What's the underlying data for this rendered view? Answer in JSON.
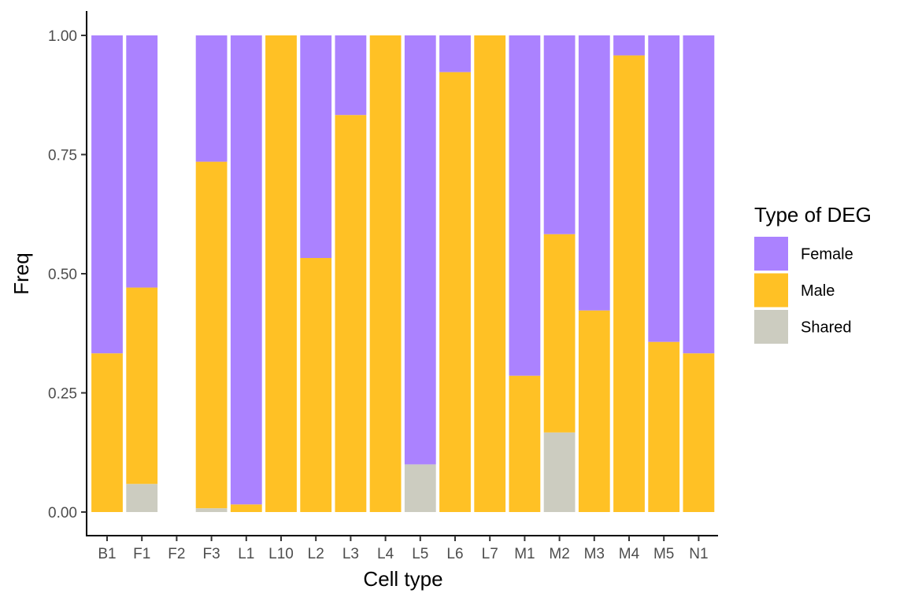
{
  "chart_data": {
    "type": "bar",
    "stacked": true,
    "title": "",
    "xlabel": "Cell type",
    "ylabel": "Freq",
    "ylim": [
      0,
      1
    ],
    "yticks": [
      "0.00",
      "0.25",
      "0.50",
      "0.75",
      "1.00"
    ],
    "categories": [
      "B1",
      "F1",
      "F2",
      "F3",
      "L1",
      "L10",
      "L2",
      "L3",
      "L4",
      "L5",
      "L6",
      "L7",
      "M1",
      "M2",
      "M3",
      "M4",
      "M5",
      "N1"
    ],
    "series": [
      {
        "name": "Shared",
        "color": "#CCCCC0",
        "values": [
          0,
          0.059,
          0,
          0.008,
          0,
          0,
          0,
          0,
          0,
          0.1,
          0,
          0,
          0,
          0.167,
          0,
          0,
          0,
          0
        ]
      },
      {
        "name": "Male",
        "color": "#FFC125",
        "values": [
          0.333,
          0.412,
          0,
          0.727,
          0.016,
          1.0,
          0.533,
          0.833,
          1.0,
          0,
          0.923,
          1.0,
          0.286,
          0.416,
          0.423,
          0.958,
          0.357,
          0.333
        ]
      },
      {
        "name": "Female",
        "color": "#AB82FF",
        "values": [
          0.667,
          0.529,
          0,
          0.265,
          0.984,
          0,
          0.467,
          0.167,
          0,
          0.9,
          0.077,
          0,
          0.714,
          0.417,
          0.577,
          0.042,
          0.643,
          0.667
        ]
      }
    ],
    "legend": {
      "title": "Type of DEG",
      "position": "right",
      "order": [
        "Female",
        "Male",
        "Shared"
      ]
    },
    "grid": false
  }
}
